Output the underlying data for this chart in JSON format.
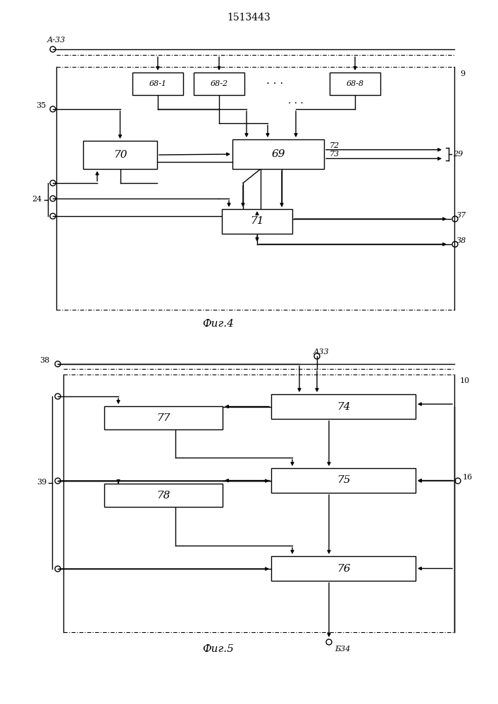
{
  "title": "1513443",
  "fig4_label": "Фиг.4",
  "fig5_label": "Фиг.5",
  "bg_color": "#ffffff",
  "line_color": "#000000",
  "lw": 1.0
}
